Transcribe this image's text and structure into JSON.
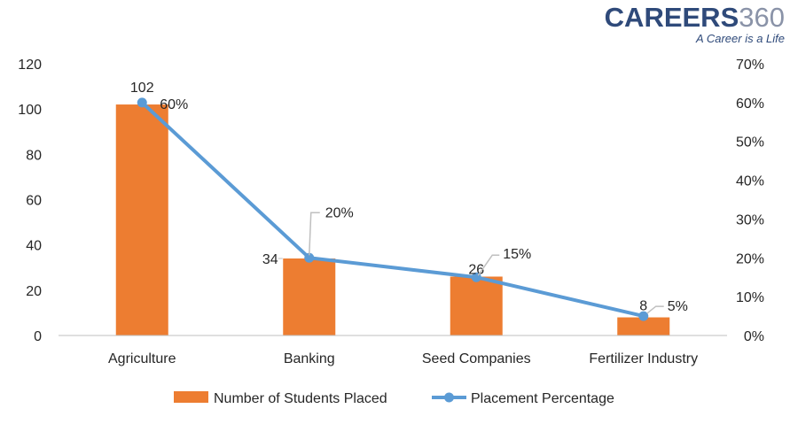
{
  "brand": {
    "name": "CAREERS",
    "number": "360",
    "tagline": "A Career is a Life"
  },
  "colors": {
    "bar": "#ed7d31",
    "line": "#5b9bd5",
    "axis": "#bfbfbf",
    "text": "#262626"
  },
  "chart_data": {
    "type": "bar",
    "categories": [
      "Agriculture",
      "Banking",
      "Seed Companies",
      "Fertilizer Industry"
    ],
    "series": [
      {
        "name": "Number of Students Placed",
        "type": "bar",
        "axis": "left",
        "values": [
          102,
          34,
          26,
          8
        ],
        "labels": [
          "102",
          "34",
          "26",
          "8"
        ]
      },
      {
        "name": "Placement Percentage",
        "type": "line",
        "axis": "right",
        "values": [
          60,
          20,
          15,
          5
        ],
        "labels": [
          "60%",
          "20%",
          "15%",
          "5%"
        ]
      }
    ],
    "y_left": {
      "min": 0,
      "max": 120,
      "ticks": [
        "0",
        "20",
        "40",
        "60",
        "80",
        "100",
        "120"
      ]
    },
    "y_right": {
      "min": 0,
      "max": 70,
      "ticks": [
        "0%",
        "10%",
        "20%",
        "30%",
        "40%",
        "50%",
        "60%",
        "70%"
      ]
    },
    "grid": false,
    "legend": "bottom"
  }
}
